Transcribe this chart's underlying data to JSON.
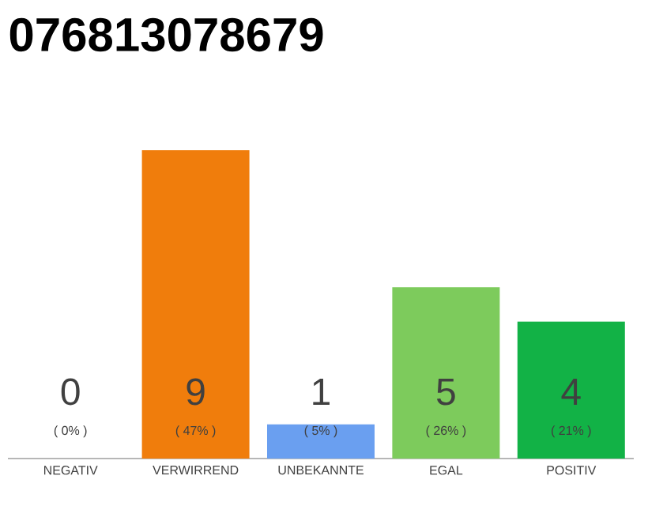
{
  "chart_data": {
    "type": "bar",
    "title": "076813078679",
    "categories": [
      "NEGATIV",
      "VERWIRREND",
      "UNBEKANNTE",
      "EGAL",
      "POSITIV"
    ],
    "values": [
      0,
      9,
      1,
      5,
      4
    ],
    "colors": [
      "#e53935",
      "#f07d0c",
      "#6a9ff0",
      "#7dcb5c",
      "#12b246"
    ],
    "data_labels": true,
    "annotations": [
      "( 0% )",
      "( 47% )",
      "( 5% )",
      "( 26% )",
      "( 21% )"
    ]
  }
}
